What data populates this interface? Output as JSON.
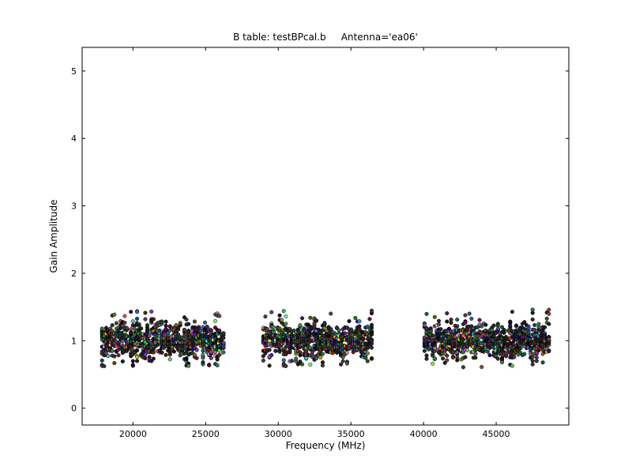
{
  "figure": {
    "background": "#ffffff",
    "frame_color": "#000000",
    "text_color": "#000000"
  },
  "chart_data": {
    "type": "scatter",
    "title": "B table: testBPcal.b     Antenna='ea06'",
    "xlabel": "Frequency (MHz)",
    "ylabel": "Gain Amplitude",
    "xlim": [
      16500,
      50000
    ],
    "ylim": [
      -0.25,
      5.35
    ],
    "xticks": [
      20000,
      25000,
      30000,
      35000,
      40000,
      45000
    ],
    "yticks": [
      0,
      1,
      2,
      3,
      4,
      5
    ],
    "grid": false,
    "legend": null,
    "series_description": "Bandpass solution gain amplitude vs frequency; dense multi-colored point columns centered near amplitude 1.0, in three spectral-window groups with gaps between them",
    "clusters": [
      {
        "x_min": 17800,
        "x_max": 26300,
        "channels": 60,
        "points_per_channel": 14,
        "y_mean": 1.0,
        "y_sigma": 0.13,
        "y_clip": [
          0.62,
          1.45
        ]
      },
      {
        "x_min": 28900,
        "x_max": 36500,
        "channels": 54,
        "points_per_channel": 14,
        "y_mean": 1.0,
        "y_sigma": 0.13,
        "y_clip": [
          0.62,
          1.45
        ]
      },
      {
        "x_min": 40000,
        "x_max": 48700,
        "channels": 62,
        "points_per_channel": 14,
        "y_mean": 1.0,
        "y_sigma": 0.13,
        "y_clip": [
          0.6,
          1.47
        ]
      }
    ],
    "marker": {
      "shape": "circle",
      "radius": 2.3,
      "edge_color": "#000000",
      "edge_width": 0.5
    },
    "seed": 1337
  }
}
